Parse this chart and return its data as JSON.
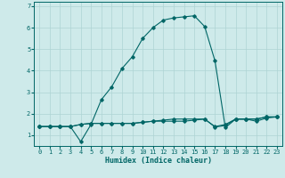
{
  "xlabel": "Humidex (Indice chaleur)",
  "bg_color": "#ceeaea",
  "grid_color": "#aed4d4",
  "line_color": "#006666",
  "xlim": [
    -0.5,
    23.5
  ],
  "ylim": [
    0.5,
    7.2
  ],
  "yticks": [
    1,
    2,
    3,
    4,
    5,
    6,
    7
  ],
  "xticks": [
    0,
    1,
    2,
    3,
    4,
    5,
    6,
    7,
    8,
    9,
    10,
    11,
    12,
    13,
    14,
    15,
    16,
    17,
    18,
    19,
    20,
    21,
    22,
    23
  ],
  "series1_x": [
    0,
    1,
    2,
    3,
    4,
    5,
    6,
    7,
    8,
    9,
    10,
    11,
    12,
    13,
    14,
    15,
    16,
    17,
    18,
    19,
    20,
    21,
    22,
    23
  ],
  "series1_y": [
    1.4,
    1.4,
    1.4,
    1.4,
    0.7,
    1.5,
    2.65,
    3.25,
    4.1,
    4.65,
    5.5,
    6.0,
    6.35,
    6.45,
    6.5,
    6.55,
    6.05,
    4.45,
    1.35,
    1.75,
    1.75,
    1.65,
    1.8,
    1.85
  ],
  "series2_x": [
    0,
    1,
    2,
    3,
    4,
    5,
    6,
    7,
    8,
    9,
    10,
    11,
    12,
    13,
    14,
    15,
    16,
    17,
    18,
    19,
    20,
    21,
    22,
    23
  ],
  "series2_y": [
    1.4,
    1.4,
    1.4,
    1.4,
    1.5,
    1.55,
    1.55,
    1.55,
    1.55,
    1.55,
    1.6,
    1.65,
    1.7,
    1.75,
    1.75,
    1.75,
    1.75,
    1.4,
    1.5,
    1.75,
    1.75,
    1.75,
    1.85,
    1.85
  ],
  "series3_x": [
    0,
    1,
    2,
    3,
    4,
    5,
    6,
    7,
    8,
    9,
    10,
    11,
    12,
    13,
    14,
    15,
    16,
    17,
    18,
    19,
    20,
    21,
    22,
    23
  ],
  "series3_y": [
    1.4,
    1.4,
    1.4,
    1.4,
    1.5,
    1.55,
    1.55,
    1.55,
    1.55,
    1.55,
    1.6,
    1.65,
    1.65,
    1.65,
    1.65,
    1.7,
    1.75,
    1.38,
    1.45,
    1.75,
    1.75,
    1.75,
    1.85,
    1.85
  ],
  "marker": "D",
  "marker_size": 1.8,
  "linewidth": 0.8,
  "font_size_ticks": 5,
  "font_size_xlabel": 6
}
